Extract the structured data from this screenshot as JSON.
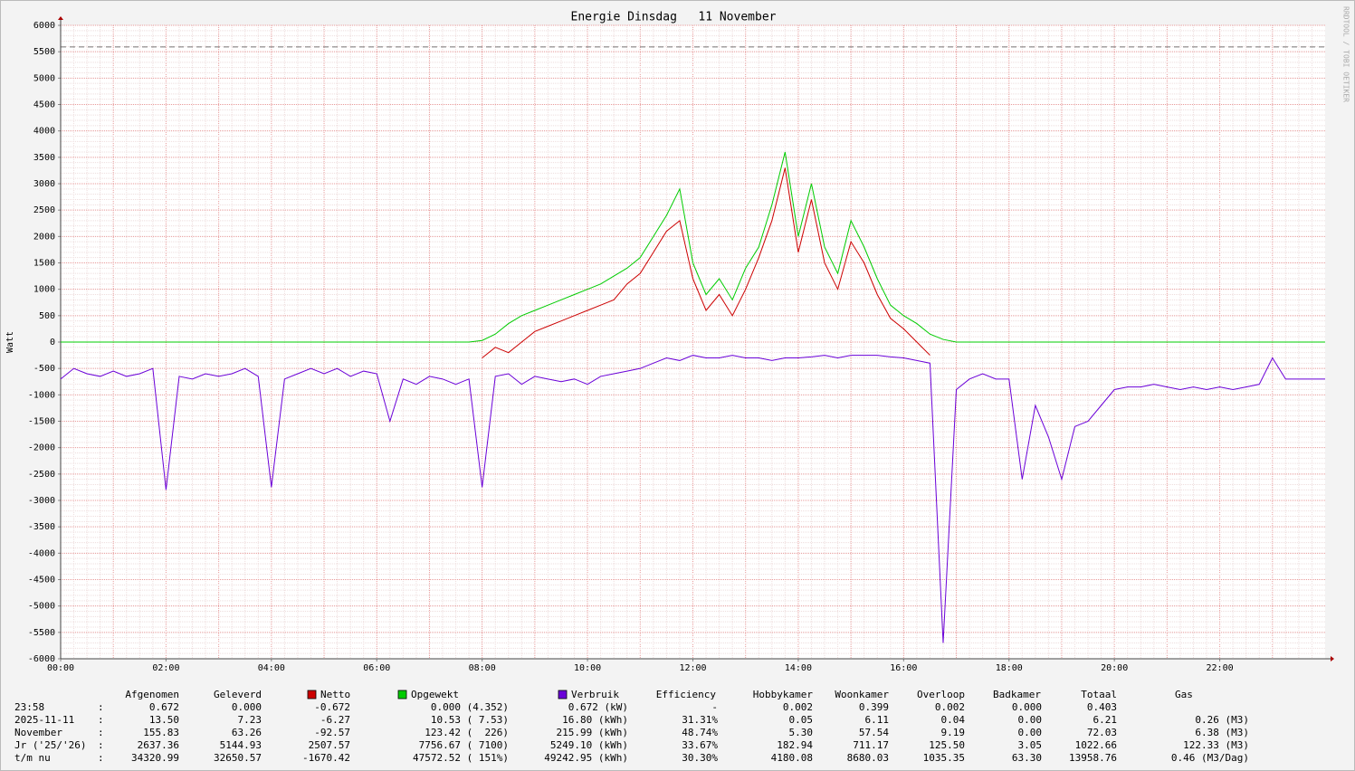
{
  "chart_data": {
    "type": "line",
    "title": "Energie Dinsdag   11 November",
    "y_label": "Watt",
    "watermark": "RRDTOOL / TOBI OETIKER",
    "grid": true,
    "xlim": [
      0,
      24
    ],
    "ylim": [
      -6000,
      6000
    ],
    "xticks": [
      {
        "value": 0,
        "label": "00:00"
      },
      {
        "value": 2,
        "label": "02:00"
      },
      {
        "value": 4,
        "label": "04:00"
      },
      {
        "value": 6,
        "label": "06:00"
      },
      {
        "value": 8,
        "label": "08:00"
      },
      {
        "value": 10,
        "label": "10:00"
      },
      {
        "value": 12,
        "label": "12:00"
      },
      {
        "value": 14,
        "label": "14:00"
      },
      {
        "value": 16,
        "label": "16:00"
      },
      {
        "value": 18,
        "label": "18:00"
      },
      {
        "value": 20,
        "label": "20:00"
      },
      {
        "value": 22,
        "label": "22:00"
      }
    ],
    "yticks": [
      -6000,
      -5500,
      -5000,
      -4500,
      -4000,
      -3500,
      -3000,
      -2500,
      -2000,
      -1500,
      -1000,
      -500,
      0,
      500,
      1000,
      1500,
      2000,
      2500,
      3000,
      3500,
      4000,
      4500,
      5000,
      5500,
      6000
    ],
    "reference_line": 5590,
    "x": [
      0,
      0.25,
      0.5,
      0.75,
      1,
      1.25,
      1.5,
      1.75,
      2,
      2.25,
      2.5,
      2.75,
      3,
      3.25,
      3.5,
      3.75,
      4,
      4.25,
      4.5,
      4.75,
      5,
      5.25,
      5.5,
      5.75,
      6,
      6.25,
      6.5,
      6.75,
      7,
      7.25,
      7.5,
      7.75,
      8,
      8.25,
      8.5,
      8.75,
      9,
      9.25,
      9.5,
      9.75,
      10,
      10.25,
      10.5,
      10.75,
      11,
      11.25,
      11.5,
      11.75,
      12,
      12.25,
      12.5,
      12.75,
      13,
      13.25,
      13.5,
      13.75,
      14,
      14.25,
      14.5,
      14.75,
      15,
      15.25,
      15.5,
      15.75,
      16,
      16.25,
      16.5,
      16.75,
      17,
      17.25,
      17.5,
      17.75,
      18,
      18.25,
      18.5,
      18.75,
      19,
      19.25,
      19.5,
      19.75,
      20,
      20.25,
      20.5,
      20.75,
      21,
      21.25,
      21.5,
      21.75,
      22,
      22.25,
      22.5,
      22.75,
      23,
      23.25,
      23.5,
      23.75,
      24
    ],
    "series": [
      {
        "name": "Netto",
        "color": "#cc0000",
        "values": [
          null,
          null,
          null,
          null,
          null,
          null,
          null,
          null,
          null,
          null,
          null,
          null,
          null,
          null,
          null,
          null,
          null,
          null,
          null,
          null,
          null,
          null,
          null,
          null,
          null,
          null,
          null,
          null,
          null,
          null,
          null,
          null,
          -300,
          -100,
          -200,
          0,
          200,
          300,
          400,
          500,
          600,
          700,
          800,
          1100,
          1300,
          1700,
          2100,
          2300,
          1200,
          600,
          900,
          500,
          1000,
          1600,
          2300,
          3300,
          1700,
          2700,
          1500,
          1000,
          1900,
          1500,
          900,
          450,
          250,
          0,
          -250,
          null,
          null,
          null,
          null,
          null,
          null,
          null,
          null,
          null,
          null,
          null,
          null,
          null,
          null,
          null,
          null,
          null,
          null,
          null,
          null,
          null,
          null,
          null,
          null,
          null,
          null,
          null,
          null,
          null,
          null
        ]
      },
      {
        "name": "Opgewekt",
        "color": "#00cc00",
        "values": [
          0,
          0,
          0,
          0,
          0,
          0,
          0,
          0,
          0,
          0,
          0,
          0,
          0,
          0,
          0,
          0,
          0,
          0,
          0,
          0,
          0,
          0,
          0,
          0,
          0,
          0,
          0,
          0,
          0,
          0,
          0,
          0,
          30,
          150,
          350,
          500,
          600,
          700,
          800,
          900,
          1000,
          1100,
          1250,
          1400,
          1600,
          2000,
          2400,
          2900,
          1500,
          900,
          1200,
          800,
          1400,
          1800,
          2600,
          3600,
          2000,
          3000,
          1800,
          1300,
          2300,
          1800,
          1200,
          700,
          500,
          350,
          150,
          50,
          0,
          0,
          0,
          0,
          0,
          0,
          0,
          0,
          0,
          0,
          0,
          0,
          0,
          0,
          0,
          0,
          0,
          0,
          0,
          0,
          0,
          0,
          0,
          0,
          0,
          0,
          0,
          0,
          0
        ]
      },
      {
        "name": "Verbruik",
        "color": "#6a00d8",
        "values": [
          -700,
          -500,
          -600,
          -650,
          -550,
          -650,
          -600,
          -500,
          -2800,
          -650,
          -700,
          -600,
          -650,
          -600,
          -500,
          -650,
          -2750,
          -700,
          -600,
          -500,
          -600,
          -500,
          -650,
          -550,
          -600,
          -1500,
          -700,
          -800,
          -650,
          -700,
          -800,
          -700,
          -2750,
          -650,
          -600,
          -800,
          -650,
          -700,
          -750,
          -700,
          -800,
          -650,
          -600,
          -550,
          -500,
          -400,
          -300,
          -350,
          -250,
          -300,
          -300,
          -250,
          -300,
          -300,
          -350,
          -300,
          -300,
          -280,
          -250,
          -300,
          -250,
          -250,
          -250,
          -280,
          -300,
          -350,
          -400,
          -5700,
          -900,
          -700,
          -600,
          -700,
          -700,
          -2600,
          -1200,
          -1800,
          -2600,
          -1600,
          -1500,
          -1200,
          -900,
          -850,
          -850,
          -800,
          -850,
          -900,
          -850,
          -900,
          -850,
          -900,
          -850,
          -800,
          -300,
          -700,
          -700,
          -700,
          -700
        ]
      }
    ],
    "table": {
      "headers": [
        "Afgenomen",
        "Geleverd",
        "Efficiency",
        "Hobbykamer",
        "Woonkamer",
        "Overloop",
        "Badkamer",
        "Totaal",
        "Gas"
      ],
      "separator": ":",
      "rows": [
        {
          "label": "23:58",
          "cells": [
            "0.672",
            "0.000",
            "-0.672",
            "0.000 (4.352)",
            "0.672 (kW)",
            "-",
            "0.002",
            "0.399",
            "0.002",
            "0.000",
            "0.403"
          ]
        },
        {
          "label": "2025-11-11",
          "cells": [
            "13.50",
            "7.23",
            "-6.27",
            "10.53 ( 7.53)",
            "16.80 (kWh)",
            "31.31%",
            "0.05",
            "6.11",
            "0.04",
            "0.00",
            "6.21",
            "0.26 (M3)"
          ]
        },
        {
          "label": "November",
          "cells": [
            "155.83",
            "63.26",
            "-92.57",
            "123.42 (  226)",
            "215.99 (kWh)",
            "48.74%",
            "5.30",
            "57.54",
            "9.19",
            "0.00",
            "72.03",
            "6.38 (M3)"
          ]
        },
        {
          "label": "Jr ('25/'26)",
          "cells": [
            "2637.36",
            "5144.93",
            "2507.57",
            "7756.67 ( 7100)",
            "5249.10 (kWh)",
            "33.67%",
            "182.94",
            "711.17",
            "125.50",
            "3.05",
            "1022.66",
            "122.33 (M3)"
          ]
        },
        {
          "label": "t/m nu",
          "cells": [
            "34320.99",
            "32650.57",
            "-1670.42",
            "47572.52 ( 151%)",
            "49242.95 (kWh)",
            "30.30%",
            "4180.08",
            "8680.03",
            "1035.35",
            "63.30",
            "13958.76",
            "0.46 (M3/Dag)"
          ]
        }
      ]
    }
  }
}
